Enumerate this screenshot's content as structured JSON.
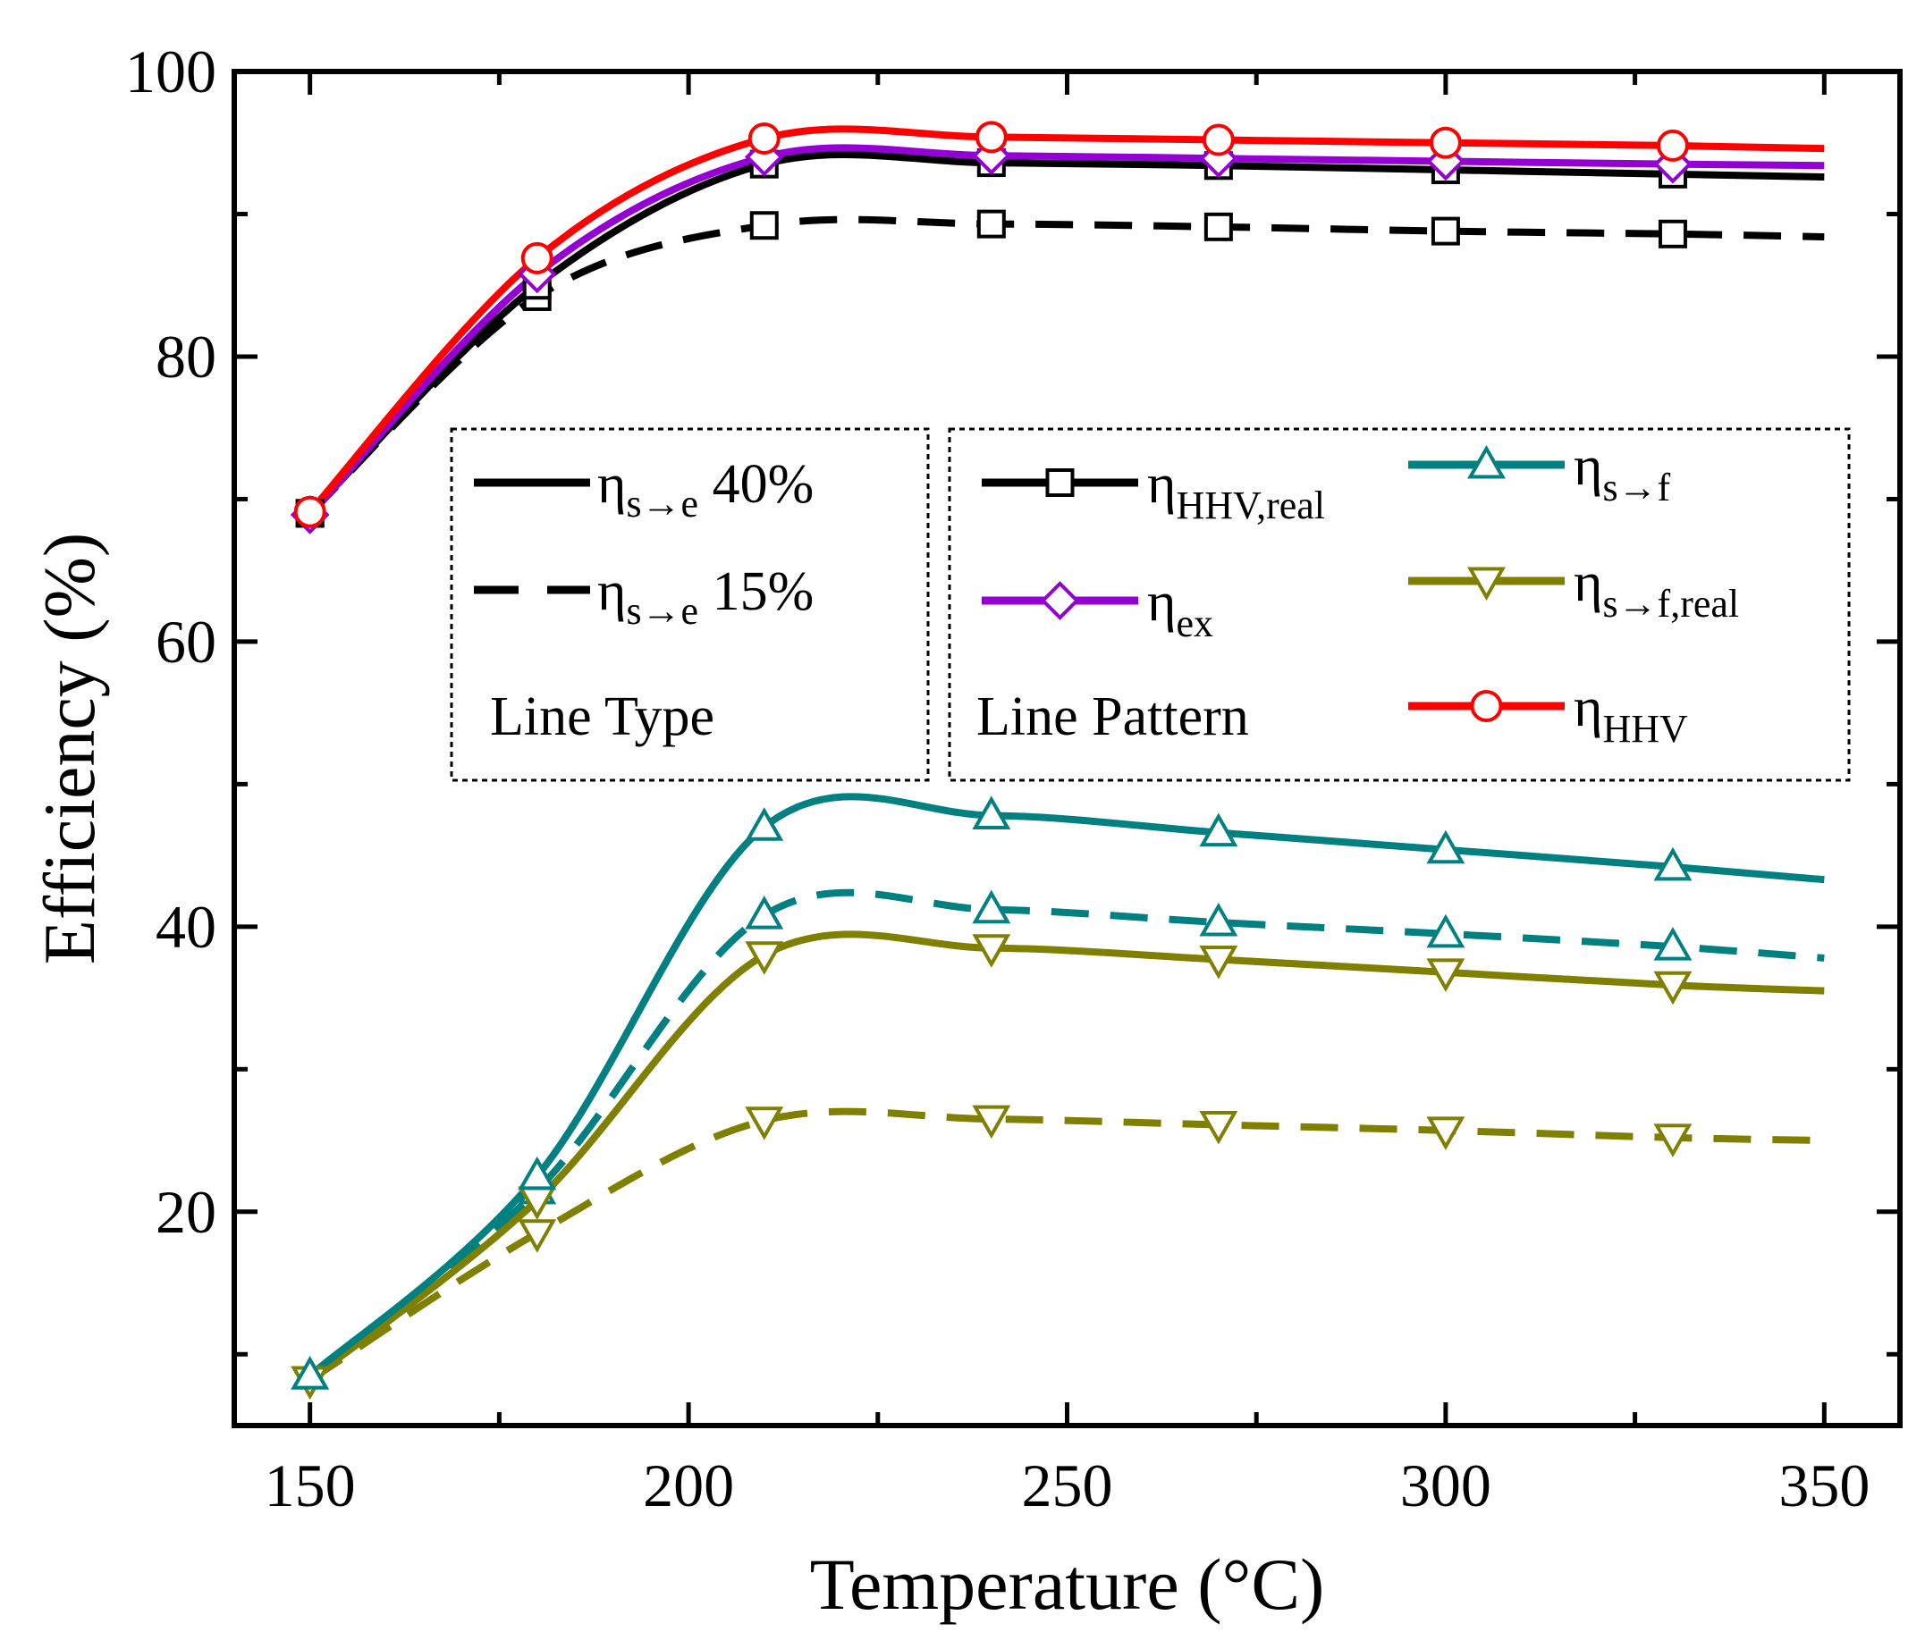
{
  "chart_data": {
    "type": "line",
    "title": "",
    "xlabel": "Temperature (°C)",
    "ylabel": "Efficiency (%)",
    "xlim": [
      140,
      360
    ],
    "ylim": [
      5,
      100
    ],
    "xticks": [
      150,
      200,
      250,
      300,
      350
    ],
    "yticks": [
      20,
      40,
      60,
      80,
      100
    ],
    "x": [
      150,
      180,
      210,
      240,
      270,
      300,
      330,
      350
    ],
    "series": [
      {
        "key": "hhv_real_40",
        "name": "η_HHV,real",
        "line_type": "40%",
        "color": "#000000",
        "marker": "square",
        "dashed": false,
        "values": [
          69.0,
          85.0,
          93.5,
          93.6,
          93.4,
          93.1,
          92.8,
          92.6
        ]
      },
      {
        "key": "hhv_real_15",
        "name": "η_HHV,real",
        "line_type": "15%",
        "color": "#000000",
        "marker": "square",
        "dashed": true,
        "values": [
          69.0,
          84.2,
          89.2,
          89.3,
          89.1,
          88.8,
          88.6,
          88.4
        ]
      },
      {
        "key": "ex",
        "name": "η_ex",
        "line_type": "40%",
        "color": "#9400D3",
        "marker": "diamond",
        "dashed": false,
        "values": [
          68.9,
          85.8,
          94.0,
          94.1,
          93.9,
          93.7,
          93.5,
          93.4
        ]
      },
      {
        "key": "hhv",
        "name": "η_HHV",
        "line_type": "40%",
        "color": "#FF0000",
        "marker": "circle",
        "dashed": false,
        "values": [
          69.1,
          86.9,
          95.3,
          95.4,
          95.2,
          95.0,
          94.8,
          94.6
        ]
      },
      {
        "key": "sf_40",
        "name": "η_s→f",
        "line_type": "40%",
        "color": "#008080",
        "marker": "triangle-up",
        "dashed": false,
        "values": [
          8.5,
          22.5,
          47.0,
          47.8,
          46.6,
          45.4,
          44.2,
          43.3
        ]
      },
      {
        "key": "sf_15",
        "name": "η_s→f",
        "line_type": "15%",
        "color": "#008080",
        "marker": "triangle-up",
        "dashed": true,
        "values": [
          8.5,
          21.5,
          40.8,
          41.2,
          40.3,
          39.5,
          38.6,
          37.8
        ]
      },
      {
        "key": "sfr_40",
        "name": "η_s→f,real",
        "line_type": "40%",
        "color": "#808000",
        "marker": "triangle-down",
        "dashed": false,
        "values": [
          8.2,
          20.8,
          38.0,
          38.5,
          37.7,
          36.8,
          35.9,
          35.5
        ]
      },
      {
        "key": "sfr_15",
        "name": "η_s→f,real",
        "line_type": "15%",
        "color": "#808000",
        "marker": "triangle-down",
        "dashed": true,
        "values": [
          8.2,
          18.5,
          26.4,
          26.5,
          26.1,
          25.7,
          25.2,
          25.0
        ]
      }
    ],
    "legend_line_type": {
      "title": "Line Type",
      "entries": [
        {
          "symbol": "η",
          "sub": "s→e",
          "text": " 40%",
          "dashed": false
        },
        {
          "symbol": "η",
          "sub": "s→e",
          "text": " 15%",
          "dashed": true
        }
      ]
    },
    "legend_line_pattern": {
      "title": "Line Pattern",
      "entries": [
        {
          "key": "hhv_real",
          "symbol": "η",
          "sub": "HHV,real",
          "color": "#000000",
          "marker": "square"
        },
        {
          "key": "ex",
          "symbol": "η",
          "sub": "ex",
          "color": "#9400D3",
          "marker": "diamond"
        },
        {
          "key": "sf",
          "symbol": "η",
          "sub": "s→f",
          "color": "#008080",
          "marker": "triangle-up"
        },
        {
          "key": "sfr",
          "symbol": "η",
          "sub": "s→f,real",
          "color": "#808000",
          "marker": "triangle-down"
        },
        {
          "key": "hhv",
          "symbol": "η",
          "sub": "HHV",
          "color": "#FF0000",
          "marker": "circle"
        }
      ]
    }
  }
}
